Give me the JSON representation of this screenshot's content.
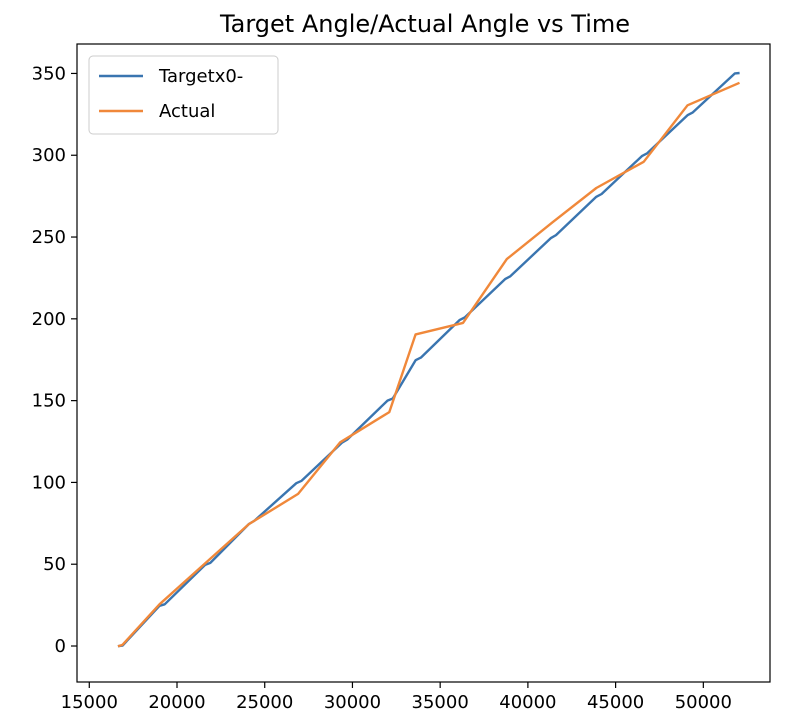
{
  "chart_data": {
    "type": "line",
    "title": "Target Angle/Actual Angle vs Time",
    "xlabel": "",
    "ylabel": "",
    "xlim": [
      14300,
      53800
    ],
    "ylim": [
      -22,
      368
    ],
    "xticks": [
      15000,
      20000,
      25000,
      30000,
      35000,
      40000,
      45000,
      50000
    ],
    "yticks": [
      0,
      50,
      100,
      150,
      200,
      250,
      300,
      350
    ],
    "grid": false,
    "legend_position": "upper-left",
    "series": [
      {
        "name": "Targetx0-",
        "color": "#3a75b0",
        "x": [
          16700,
          16900,
          19000,
          19300,
          21600,
          21900,
          24100,
          24400,
          26800,
          27100,
          29400,
          29700,
          32000,
          32300,
          33600,
          33900,
          36100,
          36400,
          38700,
          39000,
          41300,
          41600,
          43900,
          44200,
          46500,
          46800,
          49100,
          49400,
          51800,
          52000
        ],
        "y": [
          0,
          0.3,
          24.6,
          25.5,
          49.6,
          50.8,
          74.6,
          76.5,
          99.5,
          101,
          124.3,
          126.2,
          150,
          151.3,
          174.7,
          176.3,
          199.2,
          200.8,
          224.3,
          226,
          249.3,
          251.2,
          274.6,
          276.3,
          299.5,
          301.2,
          324.5,
          326.2,
          350,
          350.2
        ]
      },
      {
        "name": "Actual",
        "color": "#f0883a",
        "x": [
          16700,
          16900,
          19000,
          21600,
          24100,
          26900,
          29300,
          32100,
          33600,
          36300,
          38800,
          41400,
          43900,
          46600,
          49100,
          52000
        ],
        "y": [
          0,
          0.8,
          25.5,
          50.5,
          74.5,
          93,
          124.5,
          143,
          190.5,
          197.5,
          236.5,
          259,
          280,
          296,
          330.5,
          344
        ]
      }
    ]
  }
}
